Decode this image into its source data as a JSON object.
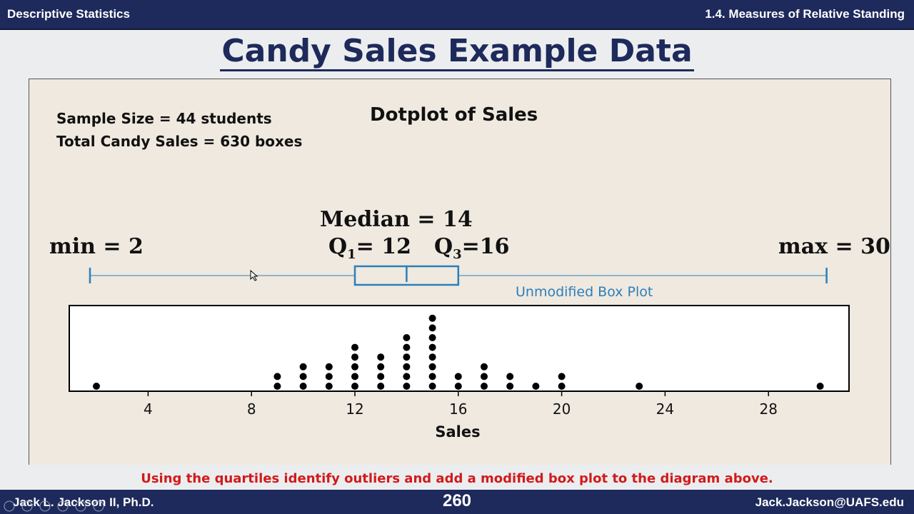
{
  "header": {
    "left": "Descriptive Statistics",
    "right": "1.4. Measures of Relative Standing"
  },
  "slide": {
    "title": "Candy Sales Example Data"
  },
  "info": {
    "sample_size": "Sample Size = 44 students",
    "total_sales": "Total Candy Sales = 630 boxes"
  },
  "stats": {
    "median": "Median = 14",
    "q1_letter": "Q",
    "q1_sub": "1",
    "q1_value": "= 12",
    "q3_letter": "Q",
    "q3_sub": "3",
    "q3_value": "=16",
    "min": "min = 2",
    "max": "max = 30"
  },
  "boxplot": {
    "label": "Unmodified Box Plot",
    "min": 2,
    "q1": 12,
    "median": 14,
    "q3": 16,
    "max": 30,
    "color": "#2c7fb8"
  },
  "chart_data": {
    "type": "scatter",
    "subtype": "dotplot",
    "title": "Dotplot of Sales",
    "xlabel": "Sales",
    "ylabel": "",
    "xticks": [
      4,
      8,
      12,
      16,
      20,
      24,
      28
    ],
    "points": [
      {
        "x": 2,
        "count": 1
      },
      {
        "x": 9,
        "count": 2
      },
      {
        "x": 10,
        "count": 3
      },
      {
        "x": 11,
        "count": 3
      },
      {
        "x": 12,
        "count": 5
      },
      {
        "x": 13,
        "count": 4
      },
      {
        "x": 14,
        "count": 6
      },
      {
        "x": 15,
        "count": 8
      },
      {
        "x": 16,
        "count": 2
      },
      {
        "x": 17,
        "count": 3
      },
      {
        "x": 18,
        "count": 2
      },
      {
        "x": 19,
        "count": 1
      },
      {
        "x": 20,
        "count": 2
      },
      {
        "x": 23,
        "count": 1
      },
      {
        "x": 30,
        "count": 1
      }
    ]
  },
  "footer": {
    "note": "Using the quartiles identify outliers and add a modified box plot to the diagram above.",
    "author": "Jack L. Jackson II, Ph.D.",
    "page": "260",
    "email": "Jack.Jackson@UAFS.edu"
  }
}
